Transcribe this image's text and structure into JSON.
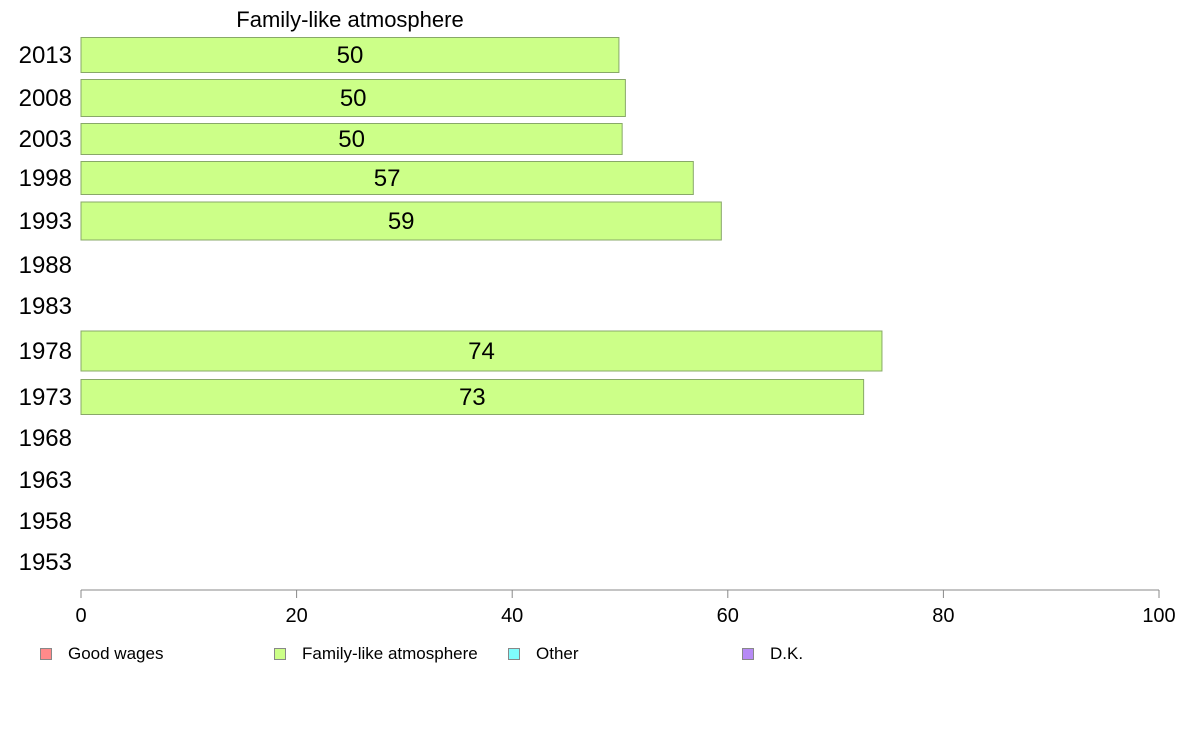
{
  "chart_data": {
    "type": "bar",
    "orientation": "horizontal",
    "title": "Family-like atmosphere",
    "categories": [
      "2013",
      "2008",
      "2003",
      "1998",
      "1993",
      "1988",
      "1983",
      "1978",
      "1973",
      "1968",
      "1963",
      "1958",
      "1953"
    ],
    "series": [
      {
        "name": "Family-like atmosphere",
        "color": "#ccff88",
        "values": [
          49.9,
          50.5,
          50.2,
          56.8,
          59.4,
          null,
          null,
          74.3,
          72.6,
          null,
          null,
          null,
          null
        ],
        "labels": [
          "50",
          "50",
          "50",
          "57",
          "59",
          "",
          "",
          "74",
          "73",
          "",
          "",
          "",
          ""
        ]
      }
    ],
    "xlim": [
      0,
      100
    ],
    "xticks": [
      "0",
      "20",
      "40",
      "60",
      "80",
      "100"
    ],
    "grid": false,
    "legend_position": "bottom",
    "legend": [
      {
        "label": "Good wages",
        "color": "#ff8a8a"
      },
      {
        "label": "Family-like atmosphere",
        "color": "#ccff88"
      },
      {
        "label": "Other",
        "color": "#7ffcfc"
      },
      {
        "label": "D.K.",
        "color": "#b68af5"
      }
    ]
  }
}
